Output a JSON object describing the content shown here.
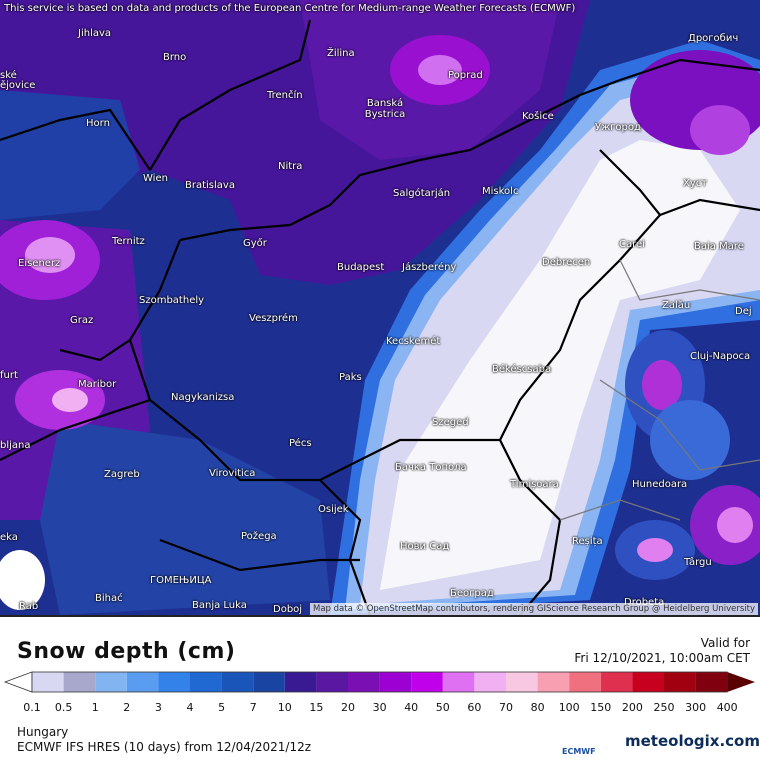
{
  "header": {
    "notice": "This service is based on data and products of the European Centre for Medium-range Weather Forecasts (ECMWF)"
  },
  "map": {
    "cities": [
      {
        "label": "Jihlava"
      },
      {
        "label": "Brno"
      },
      {
        "label": "Žilina"
      },
      {
        "label": "Poprad"
      },
      {
        "label": "Дрогобич"
      },
      {
        "label": "ské"
      },
      {
        "label": "ějovice"
      },
      {
        "label": "Trenčín"
      },
      {
        "label": "Banská Bystrica"
      },
      {
        "label": "Horn"
      },
      {
        "label": "Košice"
      },
      {
        "label": "Ужгород"
      },
      {
        "label": "Wien"
      },
      {
        "label": "Bratislava"
      },
      {
        "label": "Nitra"
      },
      {
        "label": "Salgótarján"
      },
      {
        "label": "Miskolc"
      },
      {
        "label": "Хуст"
      },
      {
        "label": "Ternitz"
      },
      {
        "label": "Győr"
      },
      {
        "label": "Carei"
      },
      {
        "label": "Baia Mare"
      },
      {
        "label": "Eisenerz"
      },
      {
        "label": "Budapest"
      },
      {
        "label": "Jászberény"
      },
      {
        "label": "Debrecen"
      },
      {
        "label": "Szombathely"
      },
      {
        "label": "Zalău"
      },
      {
        "label": "Graz"
      },
      {
        "label": "Veszprém"
      },
      {
        "label": "Dej"
      },
      {
        "label": "Kecskemét"
      },
      {
        "label": "Cluj-Napoca"
      },
      {
        "label": "furt"
      },
      {
        "label": "Maribor"
      },
      {
        "label": "Paks"
      },
      {
        "label": "Békéscsaba"
      },
      {
        "label": "Nagykanizsa"
      },
      {
        "label": "bljana"
      },
      {
        "label": "Szeged"
      },
      {
        "label": "Pécs"
      },
      {
        "label": "Zagreb"
      },
      {
        "label": "Virovitica"
      },
      {
        "label": "Бачка Топола"
      },
      {
        "label": "Timișoara"
      },
      {
        "label": "Hunedoara"
      },
      {
        "label": "Osijek"
      },
      {
        "label": "eka"
      },
      {
        "label": "Požega"
      },
      {
        "label": "Reșița"
      },
      {
        "label": "Нови Сад"
      },
      {
        "label": "Târgu"
      },
      {
        "label": "ГОМЕЊИЦА"
      },
      {
        "label": "Bihać"
      },
      {
        "label": "Banja Luka"
      },
      {
        "label": "Doboj"
      },
      {
        "label": "Београд"
      },
      {
        "label": "Drobeta"
      },
      {
        "label": "Rab"
      }
    ],
    "attribution": "Map data © OpenStreetMap contributors, rendering GIScience Research Group @ Heidelberg University"
  },
  "legend": {
    "title": "Snow depth (cm)",
    "valid_label": "Valid for",
    "valid_time": "Fri 12/10/2021, 10:00am CET",
    "colorbar": {
      "ticks": [
        0.1,
        0.5,
        1,
        2,
        3,
        4,
        5,
        7,
        10,
        15,
        20,
        30,
        40,
        50,
        60,
        70,
        80,
        100,
        150,
        200,
        250,
        300,
        400
      ],
      "colors": [
        "#d8d8f2",
        "#a8a8cc",
        "#82b4f2",
        "#5a9cf0",
        "#3282ea",
        "#2068d2",
        "#1a56ba",
        "#1a44a2",
        "#3a1a92",
        "#5a18a2",
        "#7a10b4",
        "#9c00d2",
        "#c000ea",
        "#e070f2",
        "#f0b0f2",
        "#f8c8e2",
        "#f8a0b2",
        "#f07080",
        "#e03050",
        "#c80020",
        "#a00010",
        "#800010"
      ],
      "under_color": "#ffffff",
      "over_color": "#5a0000"
    }
  },
  "footer": {
    "region": "Hungary",
    "model": "ECMWF IFS HRES (10 days) from 12/04/2021/12z",
    "ecmwf_logo": "ECMWF",
    "brand": "meteologix.com"
  }
}
